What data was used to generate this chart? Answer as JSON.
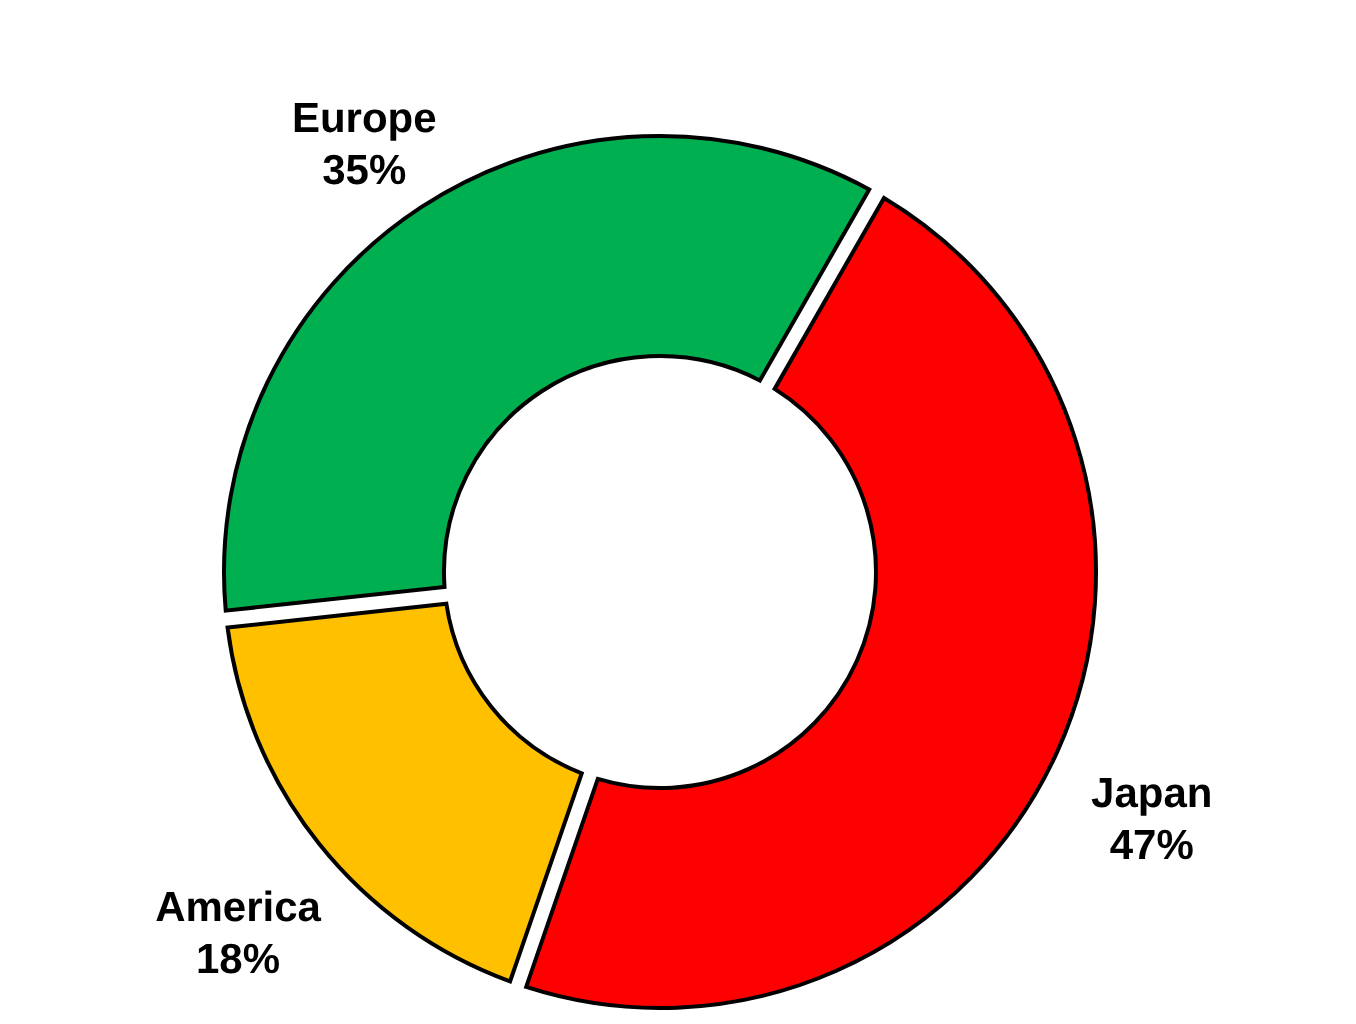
{
  "chart_data": {
    "type": "donut",
    "categories": [
      "Japan",
      "America",
      "Europe"
    ],
    "values": [
      47,
      18,
      35
    ],
    "colors": [
      "#ff0000",
      "#ffc000",
      "#00b050"
    ],
    "value_labels": [
      "47%",
      "18%",
      "35%"
    ]
  }
}
